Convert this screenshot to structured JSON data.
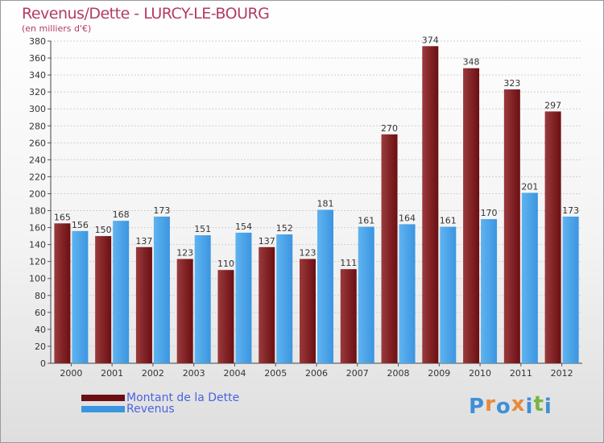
{
  "header": {
    "title": "Revenus/Dette - LURCY-LE-BOURG",
    "subtitle": "(en milliers d'€)"
  },
  "legend": {
    "debt_label": "Montant de la Dette",
    "revenue_label": "Revenus"
  },
  "logo": {
    "letters": [
      "P",
      "r",
      "o",
      "x",
      "i",
      "t",
      "i"
    ],
    "colors": [
      "#3e8fd8",
      "#e8893a",
      "#3e8fd8",
      "#e8893a",
      "#3e8fd8",
      "#7cb342",
      "#3e8fd8"
    ]
  },
  "colors": {
    "debt": "#6b0f12",
    "debt_light": "#9a3a3c",
    "revenue": "#3b95e0",
    "revenue_light": "#5fb3f0",
    "title": "#b23c62",
    "legend_text": "#4a63e0"
  },
  "chart_data": {
    "type": "bar",
    "title": "Revenus/Dette - LURCY-LE-BOURG",
    "ylabel": "(en milliers d'€)",
    "xlabel": "",
    "ylim": [
      0,
      380
    ],
    "ytick_step": 20,
    "grid": true,
    "legend_position": "bottom-left",
    "categories": [
      "2000",
      "2001",
      "2002",
      "2003",
      "2004",
      "2005",
      "2006",
      "2007",
      "2008",
      "2009",
      "2010",
      "2011",
      "2012"
    ],
    "series": [
      {
        "name": "Montant de la Dette",
        "values": [
          165,
          150,
          137,
          123,
          110,
          137,
          123,
          111,
          270,
          374,
          348,
          323,
          297
        ]
      },
      {
        "name": "Revenus",
        "values": [
          156,
          168,
          173,
          151,
          154,
          152,
          181,
          161,
          164,
          161,
          170,
          201,
          173
        ]
      }
    ]
  }
}
